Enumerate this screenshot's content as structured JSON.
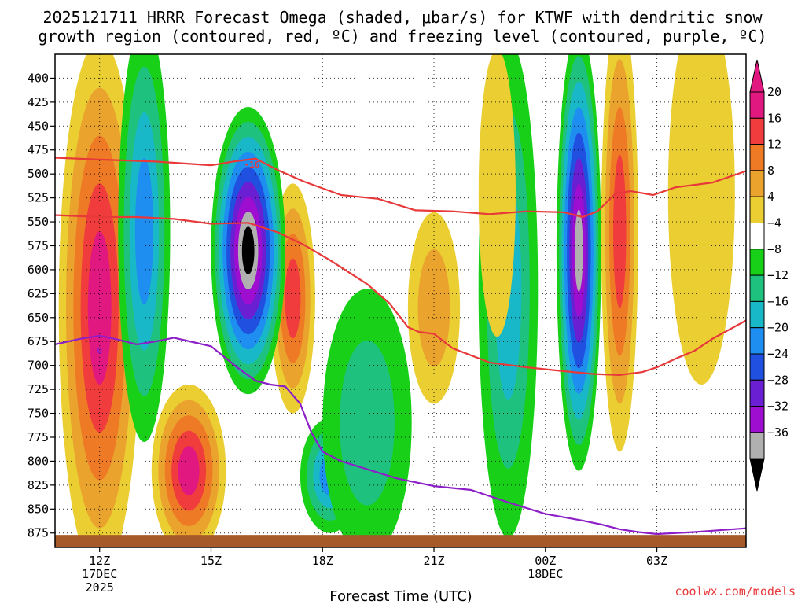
{
  "chart_data": {
    "type": "heatmap",
    "title_line1": "2025121711 HRRR Forecast Omega (shaded, μbar/s) for KTWF with dendritic snow",
    "title_line2": "growth region (contoured, red, ºC) and freezing level (contoured, purple, ºC)",
    "xlabel": "Forecast Time (UTC)",
    "credit": "coolwx.com/models",
    "x_range_hours": [
      10.8,
      29.4
    ],
    "y_range_hpa": [
      375,
      890
    ],
    "y_ticks": [
      400,
      425,
      450,
      475,
      500,
      525,
      550,
      575,
      600,
      625,
      650,
      675,
      700,
      725,
      750,
      775,
      800,
      825,
      850,
      875
    ],
    "x_ticks": [
      {
        "hour": 12,
        "label": "12Z",
        "date1": "17DEC",
        "date2": "2025"
      },
      {
        "hour": 15,
        "label": "15Z",
        "date1": "",
        "date2": ""
      },
      {
        "hour": 18,
        "label": "18Z",
        "date1": "",
        "date2": ""
      },
      {
        "hour": 21,
        "label": "21Z",
        "date1": "",
        "date2": ""
      },
      {
        "hour": 24,
        "label": "00Z",
        "date1": "18DEC",
        "date2": ""
      },
      {
        "hour": 27,
        "label": "03Z",
        "date1": "",
        "date2": ""
      }
    ],
    "colorbar": {
      "labels": [
        "20",
        "16",
        "12",
        "8",
        "4",
        "−4",
        "−8",
        "−12",
        "−16",
        "−20",
        "−24",
        "−28",
        "−32",
        "−36"
      ],
      "colors": [
        "#e0187f",
        "#f03c3c",
        "#ee7a26",
        "#eaa42e",
        "#eace32",
        "#ffffff",
        "#18d018",
        "#1ec27e",
        "#18b8c8",
        "#1e8ef0",
        "#2050e0",
        "#6a20d2",
        "#9e0ed0",
        "#b0b0b0",
        "#000000"
      ],
      "top_arrow_color": "#e0187f",
      "bottom_arrow_color": "#000000"
    },
    "ground_color": "#a65a2a",
    "ground_top_hpa": 877,
    "contour_labels": [
      {
        "text": "-16",
        "hour": 16.1,
        "hpa": 491,
        "color": "#e8393a"
      },
      {
        "text": "0",
        "hour": 12.0,
        "hpa": 685,
        "color": "#8d1fc8"
      }
    ],
    "snow_growth_top": {
      "color": "#e8393a",
      "hours": [
        10.8,
        12.0,
        13.5,
        15.0,
        15.6,
        16.2,
        16.8,
        17.5,
        18.5,
        19.5,
        20.5,
        21.5,
        22.5,
        23.5,
        24.5,
        25.0,
        25.4,
        25.9,
        26.3,
        26.9,
        27.5,
        28.5,
        29.4
      ],
      "hpa": [
        483,
        485,
        487,
        491,
        487,
        484,
        496,
        508,
        522,
        526,
        538,
        539,
        542,
        539,
        540,
        545,
        539,
        520,
        518,
        522,
        514,
        509,
        497
      ]
    },
    "snow_growth_bottom": {
      "color": "#e8393a",
      "hours": [
        10.8,
        12.0,
        13.0,
        14.0,
        15.0,
        16.0,
        16.8,
        17.5,
        18.2,
        18.6,
        19.2,
        19.8,
        20.3,
        20.6,
        21.0,
        21.5,
        22.5,
        23.5,
        24.5,
        25.3,
        26.0,
        26.6,
        27.0,
        27.5,
        28.0,
        28.5,
        29.4
      ],
      "hpa": [
        543,
        545,
        545,
        547,
        552,
        551,
        561,
        574,
        590,
        600,
        615,
        635,
        660,
        665,
        667,
        682,
        697,
        702,
        706,
        709,
        710,
        707,
        702,
        693,
        685,
        672,
        653
      ]
    },
    "freezing_level": {
      "color": "#8d1fc8",
      "hours": [
        10.8,
        11.5,
        12.0,
        12.5,
        13.0,
        13.5,
        14.0,
        15.0,
        15.7,
        16.2,
        16.6,
        17.0,
        17.4,
        17.7,
        18.0,
        18.5,
        19.0,
        20.0,
        21.0,
        22.0,
        23.0,
        24.0,
        25.0,
        25.5,
        26.0,
        26.5,
        27.0,
        28.0,
        29.4
      ],
      "hpa": [
        678,
        672,
        669,
        673,
        678,
        675,
        671,
        680,
        702,
        716,
        720,
        722,
        740,
        770,
        790,
        800,
        806,
        818,
        826,
        830,
        843,
        855,
        862,
        866,
        871,
        874,
        876,
        874,
        870
      ]
    },
    "omega_cells": [
      {
        "hour": 12.0,
        "hpa": 640,
        "rx": 1.1,
        "ry": 280,
        "value": 20
      },
      {
        "hour": 14.4,
        "hpa": 810,
        "rx": 1.0,
        "ry": 90,
        "value": 20
      },
      {
        "hour": 17.2,
        "hpa": 630,
        "rx": 0.6,
        "ry": 120,
        "value": 16
      },
      {
        "hour": 16.0,
        "hpa": 580,
        "rx": 1.0,
        "ry": 150,
        "value": -36
      },
      {
        "hour": 13.2,
        "hpa": 560,
        "rx": 0.7,
        "ry": 220,
        "value": -16
      },
      {
        "hour": 18.2,
        "hpa": 815,
        "rx": 0.8,
        "ry": 60,
        "value": -16
      },
      {
        "hour": 19.2,
        "hpa": 760,
        "rx": 1.2,
        "ry": 140,
        "value": -8
      },
      {
        "hour": 21.0,
        "hpa": 640,
        "rx": 0.7,
        "ry": 100,
        "value": 8
      },
      {
        "hour": 23.0,
        "hpa": 620,
        "rx": 0.8,
        "ry": 260,
        "value": -12
      },
      {
        "hour": 22.7,
        "hpa": 520,
        "rx": 0.5,
        "ry": 150,
        "value": 4
      },
      {
        "hour": 24.9,
        "hpa": 580,
        "rx": 0.6,
        "ry": 230,
        "value": -32
      },
      {
        "hour": 26.0,
        "hpa": 560,
        "rx": 0.5,
        "ry": 230,
        "value": 16
      },
      {
        "hour": 28.2,
        "hpa": 520,
        "rx": 0.9,
        "ry": 200,
        "value": 4
      }
    ]
  }
}
